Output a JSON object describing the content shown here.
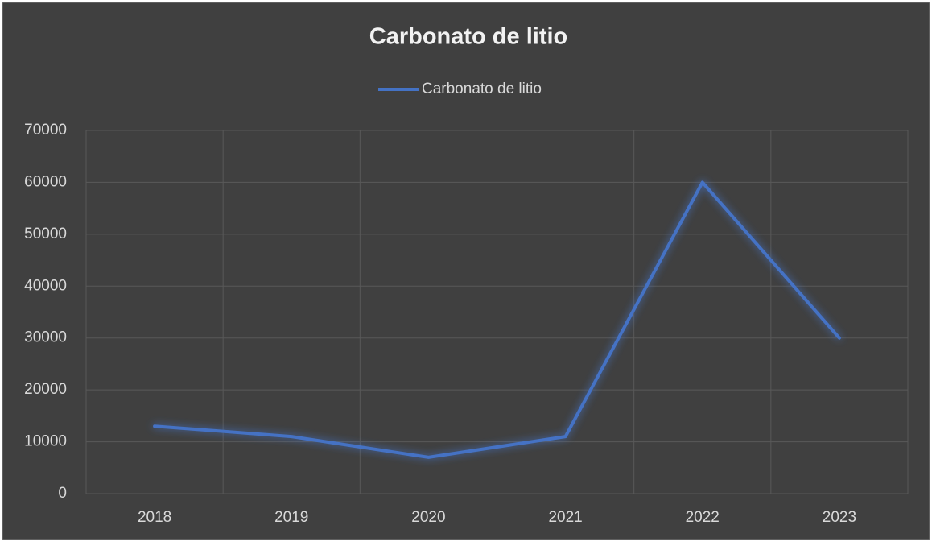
{
  "chart_data": {
    "type": "line",
    "title": "Carbonato de litio",
    "categories": [
      "2018",
      "2019",
      "2020",
      "2021",
      "2022",
      "2023"
    ],
    "series": [
      {
        "name": "Carbonato de litio",
        "color": "#4472c4",
        "values": [
          13000,
          11000,
          7000,
          11000,
          60000,
          30000
        ]
      }
    ],
    "ylim": [
      0,
      70000
    ],
    "yticks": [
      0,
      10000,
      20000,
      30000,
      40000,
      50000,
      60000,
      70000
    ],
    "grid": true,
    "legend": "top"
  }
}
